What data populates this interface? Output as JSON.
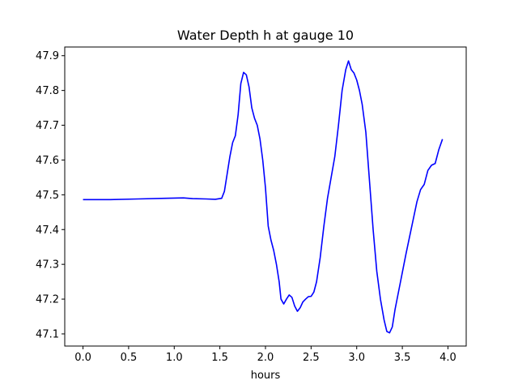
{
  "chart_data": {
    "type": "line",
    "title": "Water Depth h at gauge 10",
    "xlabel": "hours",
    "ylabel": "",
    "xlim": [
      -0.2,
      4.2
    ],
    "ylim": [
      47.065,
      47.925
    ],
    "x_ticks": [
      0.0,
      0.5,
      1.0,
      1.5,
      2.0,
      2.5,
      3.0,
      3.5,
      4.0
    ],
    "x_tick_labels": [
      "0.0",
      "0.5",
      "1.0",
      "1.5",
      "2.0",
      "2.5",
      "3.0",
      "3.5",
      "4.0"
    ],
    "y_ticks": [
      47.1,
      47.2,
      47.3,
      47.4,
      47.5,
      47.6,
      47.7,
      47.8,
      47.9
    ],
    "y_tick_labels": [
      "47.1",
      "47.2",
      "47.3",
      "47.4",
      "47.5",
      "47.6",
      "47.7",
      "47.8",
      "47.9"
    ],
    "grid": false,
    "series": [
      {
        "color": "#0000ff",
        "points": [
          [
            0.0,
            47.486
          ],
          [
            0.3,
            47.486
          ],
          [
            0.6,
            47.488
          ],
          [
            0.9,
            47.49
          ],
          [
            1.1,
            47.491
          ],
          [
            1.2,
            47.489
          ],
          [
            1.35,
            47.488
          ],
          [
            1.45,
            47.487
          ],
          [
            1.52,
            47.49
          ],
          [
            1.55,
            47.51
          ],
          [
            1.58,
            47.56
          ],
          [
            1.61,
            47.61
          ],
          [
            1.64,
            47.65
          ],
          [
            1.67,
            47.67
          ],
          [
            1.7,
            47.73
          ],
          [
            1.73,
            47.82
          ],
          [
            1.76,
            47.852
          ],
          [
            1.79,
            47.845
          ],
          [
            1.82,
            47.81
          ],
          [
            1.85,
            47.75
          ],
          [
            1.88,
            47.72
          ],
          [
            1.91,
            47.7
          ],
          [
            1.94,
            47.66
          ],
          [
            1.97,
            47.6
          ],
          [
            2.0,
            47.52
          ],
          [
            2.03,
            47.41
          ],
          [
            2.06,
            47.37
          ],
          [
            2.09,
            47.34
          ],
          [
            2.12,
            47.3
          ],
          [
            2.15,
            47.25
          ],
          [
            2.17,
            47.2
          ],
          [
            2.2,
            47.186
          ],
          [
            2.23,
            47.2
          ],
          [
            2.26,
            47.212
          ],
          [
            2.29,
            47.205
          ],
          [
            2.32,
            47.18
          ],
          [
            2.35,
            47.165
          ],
          [
            2.38,
            47.175
          ],
          [
            2.41,
            47.192
          ],
          [
            2.44,
            47.2
          ],
          [
            2.47,
            47.207
          ],
          [
            2.5,
            47.208
          ],
          [
            2.53,
            47.22
          ],
          [
            2.56,
            47.25
          ],
          [
            2.6,
            47.32
          ],
          [
            2.64,
            47.41
          ],
          [
            2.68,
            47.49
          ],
          [
            2.72,
            47.55
          ],
          [
            2.76,
            47.61
          ],
          [
            2.8,
            47.7
          ],
          [
            2.84,
            47.8
          ],
          [
            2.88,
            47.86
          ],
          [
            2.91,
            47.885
          ],
          [
            2.94,
            47.86
          ],
          [
            2.97,
            47.85
          ],
          [
            3.0,
            47.83
          ],
          [
            3.03,
            47.8
          ],
          [
            3.06,
            47.76
          ],
          [
            3.1,
            47.68
          ],
          [
            3.14,
            47.54
          ],
          [
            3.18,
            47.4
          ],
          [
            3.22,
            47.28
          ],
          [
            3.26,
            47.2
          ],
          [
            3.3,
            47.14
          ],
          [
            3.33,
            47.107
          ],
          [
            3.36,
            47.103
          ],
          [
            3.39,
            47.12
          ],
          [
            3.42,
            47.17
          ],
          [
            3.45,
            47.21
          ],
          [
            3.48,
            47.25
          ],
          [
            3.51,
            47.29
          ],
          [
            3.54,
            47.33
          ],
          [
            3.58,
            47.38
          ],
          [
            3.62,
            47.43
          ],
          [
            3.66,
            47.48
          ],
          [
            3.7,
            47.515
          ],
          [
            3.74,
            47.53
          ],
          [
            3.78,
            47.57
          ],
          [
            3.82,
            47.585
          ],
          [
            3.86,
            47.59
          ],
          [
            3.9,
            47.63
          ],
          [
            3.94,
            47.66
          ]
        ]
      }
    ]
  }
}
